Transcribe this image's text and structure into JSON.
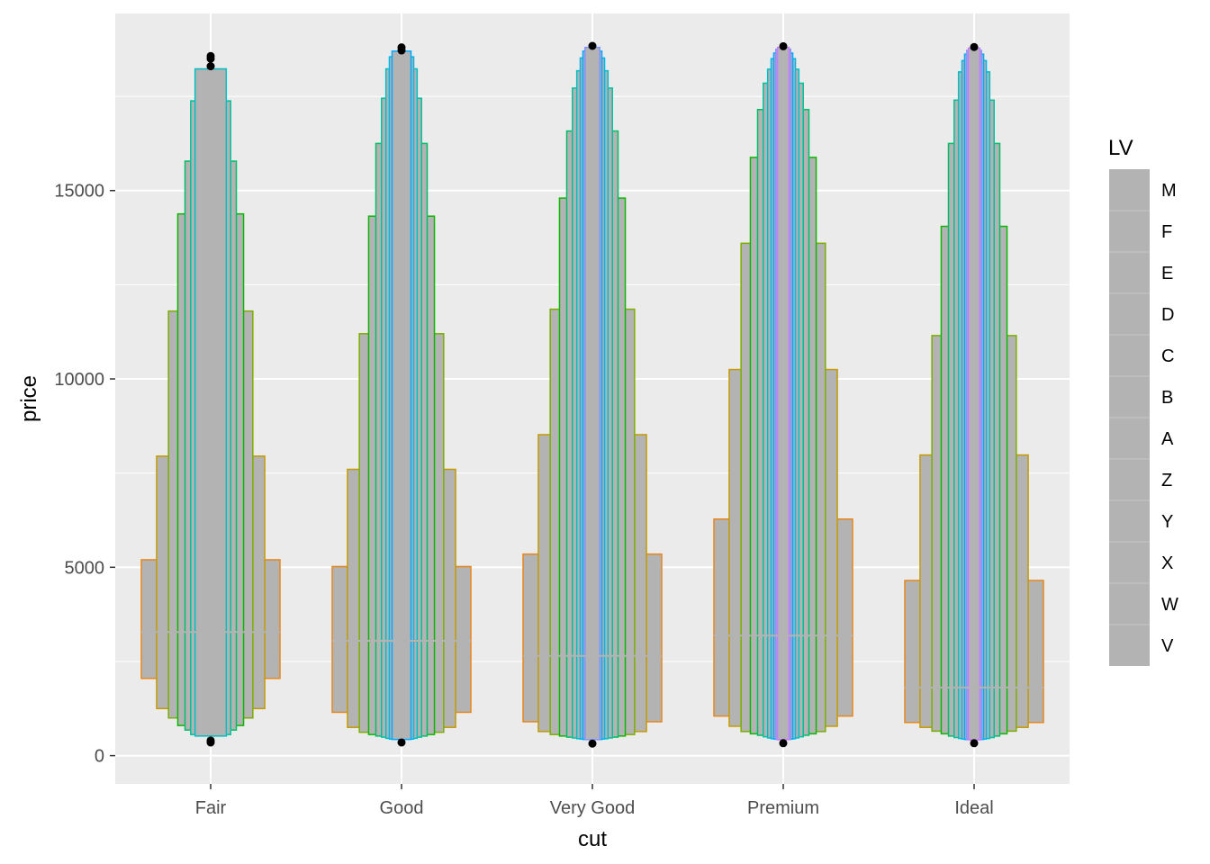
{
  "chart_data": {
    "type": "letter-value-plot",
    "title": "",
    "xlabel": "cut",
    "ylabel": "price",
    "ylim": [
      -750,
      19700
    ],
    "yticks": [
      0,
      5000,
      10000,
      15000
    ],
    "grid": true,
    "legend_placement": "right",
    "legend": {
      "title": "LV",
      "entries": [
        "M",
        "F",
        "E",
        "D",
        "C",
        "B",
        "A",
        "Z",
        "Y",
        "X",
        "W",
        "V"
      ]
    },
    "colors": {
      "panel_bg": "#ebebeb",
      "box_fill": "#b3b3b3",
      "grid": "#ffffff",
      "outlier": "#000000",
      "letter_values": [
        "#e7861b",
        "#c49a00",
        "#7cae00",
        "#0cb702",
        "#00be67",
        "#00c19a",
        "#00bfc4",
        "#00b8e7",
        "#00a9ff",
        "#8494ff",
        "#c77cff",
        "#ed68ed"
      ]
    },
    "categories": [
      "Fair",
      "Good",
      "Very Good",
      "Premium",
      "Ideal"
    ],
    "series": [
      {
        "category": "Fair",
        "median": 3282,
        "boxes": [
          [
            2050,
            5200
          ],
          [
            1250,
            7950
          ],
          [
            1000,
            11800
          ],
          [
            800,
            14380
          ],
          [
            680,
            15780
          ],
          [
            560,
            17380
          ],
          [
            520,
            18230
          ]
        ],
        "outliers": [
          18570,
          18500,
          18300,
          400,
          350
        ]
      },
      {
        "category": "Good",
        "median": 3050,
        "boxes": [
          [
            1150,
            5020
          ],
          [
            750,
            7600
          ],
          [
            620,
            11200
          ],
          [
            560,
            14320
          ],
          [
            520,
            16250
          ],
          [
            490,
            17450
          ],
          [
            460,
            18230
          ],
          [
            440,
            18550
          ],
          [
            430,
            18700
          ]
        ],
        "outliers": [
          18800,
          18720,
          350
        ]
      },
      {
        "category": "Very Good",
        "median": 2648,
        "boxes": [
          [
            900,
            5350
          ],
          [
            640,
            8520
          ],
          [
            560,
            11850
          ],
          [
            520,
            14800
          ],
          [
            490,
            16580
          ],
          [
            470,
            17720
          ],
          [
            450,
            18180
          ],
          [
            440,
            18520
          ],
          [
            430,
            18700
          ],
          [
            425,
            18800
          ]
        ],
        "outliers": [
          18840,
          320
        ]
      },
      {
        "category": "Premium",
        "median": 3185,
        "boxes": [
          [
            1050,
            6280
          ],
          [
            780,
            10250
          ],
          [
            640,
            13600
          ],
          [
            580,
            15880
          ],
          [
            540,
            17150
          ],
          [
            500,
            17850
          ],
          [
            470,
            18220
          ],
          [
            450,
            18500
          ],
          [
            440,
            18650
          ],
          [
            430,
            18750
          ],
          [
            425,
            18800
          ]
        ],
        "outliers": [
          18830,
          330
        ]
      },
      {
        "category": "Ideal",
        "median": 1810,
        "boxes": [
          [
            880,
            4650
          ],
          [
            750,
            7980
          ],
          [
            650,
            11150
          ],
          [
            580,
            14050
          ],
          [
            520,
            16250
          ],
          [
            480,
            17400
          ],
          [
            455,
            18150
          ],
          [
            440,
            18450
          ],
          [
            430,
            18620
          ],
          [
            425,
            18720
          ],
          [
            420,
            18780
          ]
        ],
        "outliers": [
          18810,
          330
        ]
      }
    ]
  }
}
